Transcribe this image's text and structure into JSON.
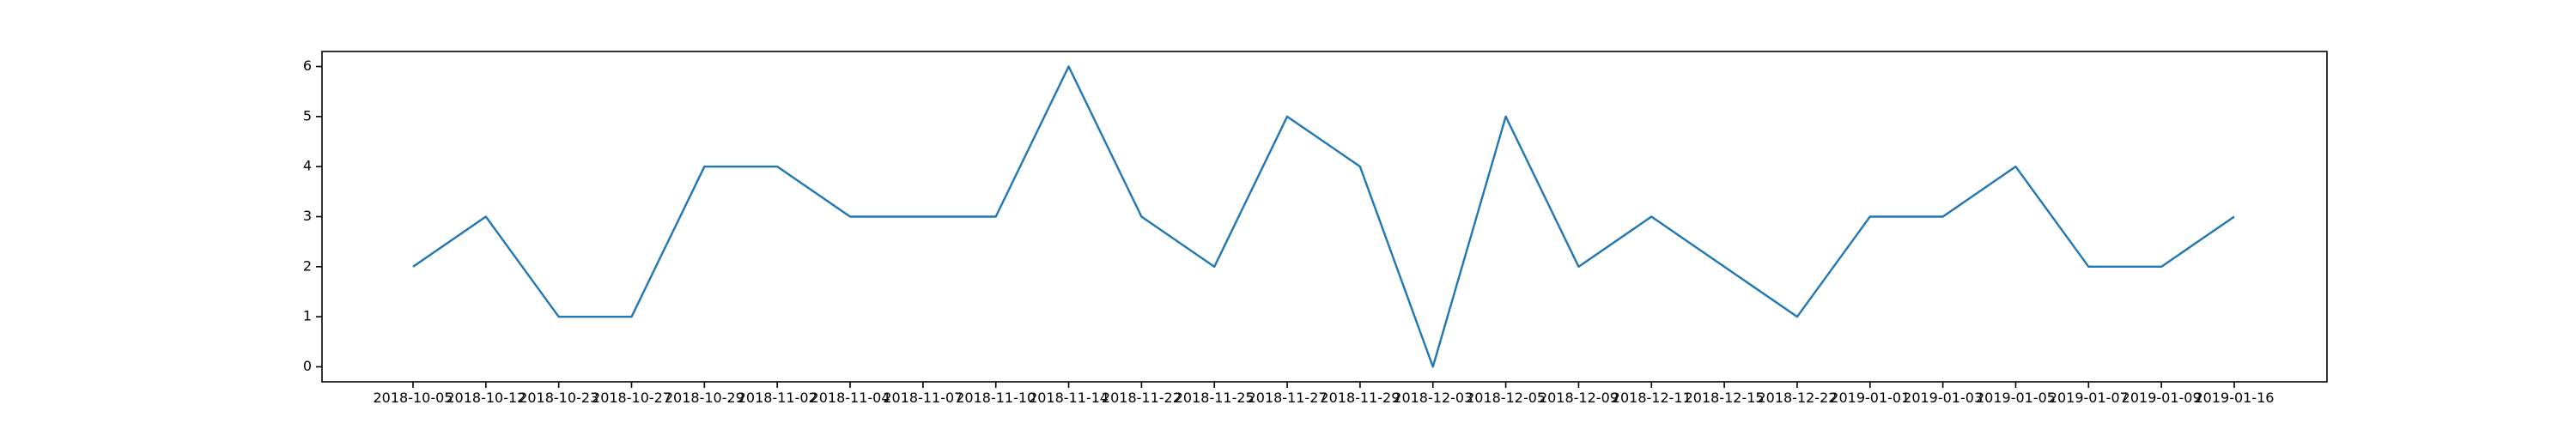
{
  "chart_data": {
    "type": "line",
    "title": "",
    "xlabel": "",
    "ylabel": "",
    "x": [
      "2018-10-05",
      "2018-10-12",
      "2018-10-23",
      "2018-10-27",
      "2018-10-29",
      "2018-11-02",
      "2018-11-04",
      "2018-11-07",
      "2018-11-10",
      "2018-11-14",
      "2018-11-22",
      "2018-11-25",
      "2018-11-27",
      "2018-11-29",
      "2018-12-03",
      "2018-12-05",
      "2018-12-09",
      "2018-12-11",
      "2018-12-15",
      "2018-12-22",
      "2019-01-01",
      "2019-01-03",
      "2019-01-05",
      "2019-01-07",
      "2019-01-09",
      "2019-01-16"
    ],
    "series": [
      {
        "values": [
          2,
          3,
          1,
          1,
          4,
          4,
          3,
          3,
          3,
          6,
          3,
          2,
          5,
          4,
          0,
          5,
          2,
          3,
          2,
          1,
          3,
          3,
          4,
          2,
          2,
          3
        ]
      }
    ],
    "yticks": [
      "0",
      "1",
      "2",
      "3",
      "4",
      "5",
      "6"
    ],
    "ylim": [
      -0.3,
      6.3
    ],
    "grid": false,
    "line_color": "#1f77b4"
  }
}
